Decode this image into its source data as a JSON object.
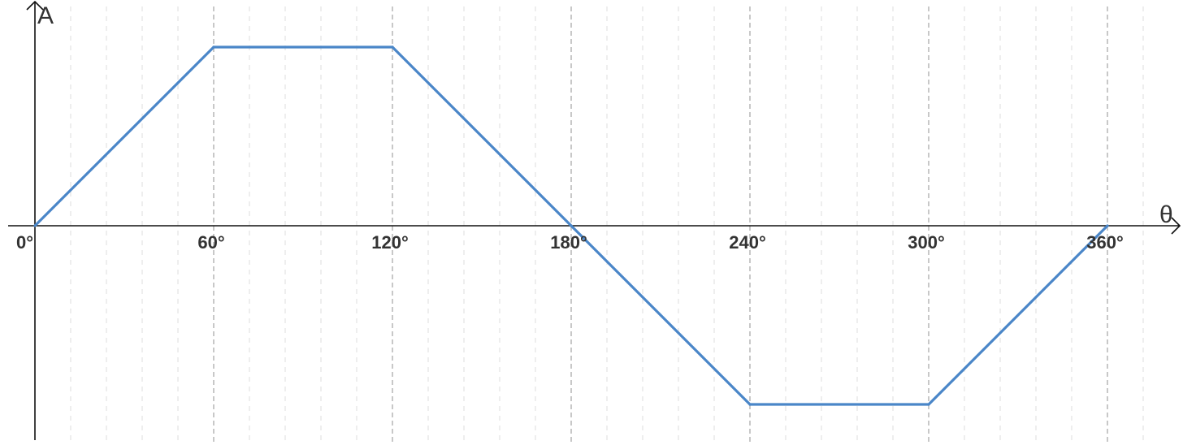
{
  "chart_data": {
    "type": "line",
    "title": "",
    "xlabel": "θ",
    "ylabel": "A",
    "xlim": [
      0,
      360
    ],
    "ylim": [
      -1,
      1
    ],
    "x_ticks": [
      0,
      60,
      120,
      180,
      240,
      300,
      360
    ],
    "x_tick_labels": [
      "0°",
      "60°",
      "120°",
      "180°",
      "240°",
      "300°",
      "360°"
    ],
    "minor_grid_step": 12,
    "grid": "vertical dashed",
    "series": [
      {
        "x": [
          0,
          60,
          120,
          180,
          240,
          300,
          360
        ],
        "y": [
          0,
          1,
          1,
          0,
          -1,
          -1,
          0
        ]
      }
    ],
    "colors": {
      "line": "#4a86c8",
      "axis": "#111111",
      "major_grid": "#b5b5b5",
      "minor_grid": "#e8e8e8",
      "text": "#333333"
    }
  }
}
